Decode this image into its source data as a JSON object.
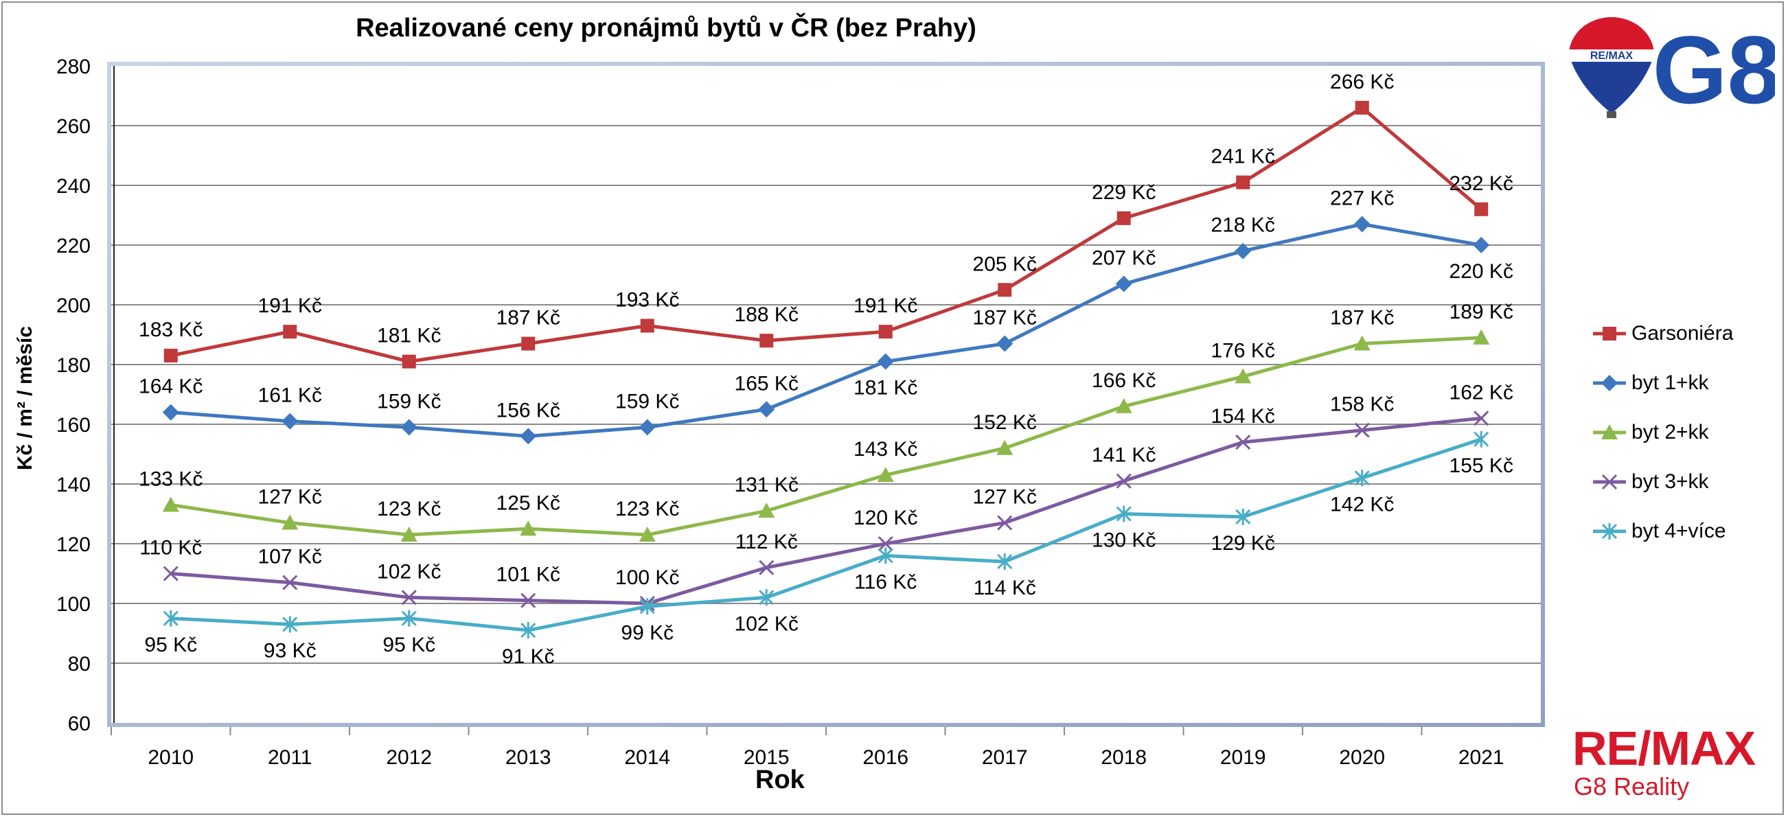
{
  "chart_data": {
    "type": "line",
    "title": "Realizované ceny pronájmů bytů v ČR (bez Prahy)",
    "xlabel": "Rok",
    "ylabel": "Kč / m² / měsíc",
    "ylim": [
      60,
      280
    ],
    "yticks": [
      60,
      80,
      100,
      120,
      140,
      160,
      180,
      200,
      220,
      240,
      260,
      280
    ],
    "categories": [
      "2010",
      "2011",
      "2012",
      "2013",
      "2014",
      "2015",
      "2016",
      "2017",
      "2018",
      "2019",
      "2020",
      "2021"
    ],
    "label_suffix": " Kč",
    "grid": true,
    "legend_position": "right",
    "series": [
      {
        "name": "Garsoniéra",
        "color": "#c0393b",
        "marker": "square",
        "values": [
          183,
          191,
          181,
          187,
          193,
          188,
          191,
          205,
          229,
          241,
          266,
          232
        ]
      },
      {
        "name": "byt 1+kk",
        "color": "#3f78c0",
        "marker": "diamond",
        "values": [
          164,
          161,
          159,
          156,
          159,
          165,
          181,
          187,
          207,
          218,
          227,
          220
        ]
      },
      {
        "name": "byt 2+kk",
        "color": "#8db84a",
        "marker": "triangle",
        "values": [
          133,
          127,
          123,
          125,
          123,
          131,
          143,
          152,
          166,
          176,
          187,
          189
        ]
      },
      {
        "name": "byt 3+kk",
        "color": "#7d5aa0",
        "marker": "x",
        "values": [
          110,
          107,
          102,
          101,
          100,
          112,
          120,
          127,
          141,
          154,
          158,
          162
        ]
      },
      {
        "name": "byt 4+více",
        "color": "#48adc7",
        "marker": "star",
        "values": [
          95,
          93,
          95,
          91,
          99,
          102,
          116,
          114,
          130,
          129,
          142,
          155
        ]
      }
    ]
  },
  "logos": {
    "balloon_text": "RE/MAX",
    "top_logo_text": "G8",
    "brand_name": "RE/MAX",
    "brand_subtitle": "G8 Reality"
  }
}
